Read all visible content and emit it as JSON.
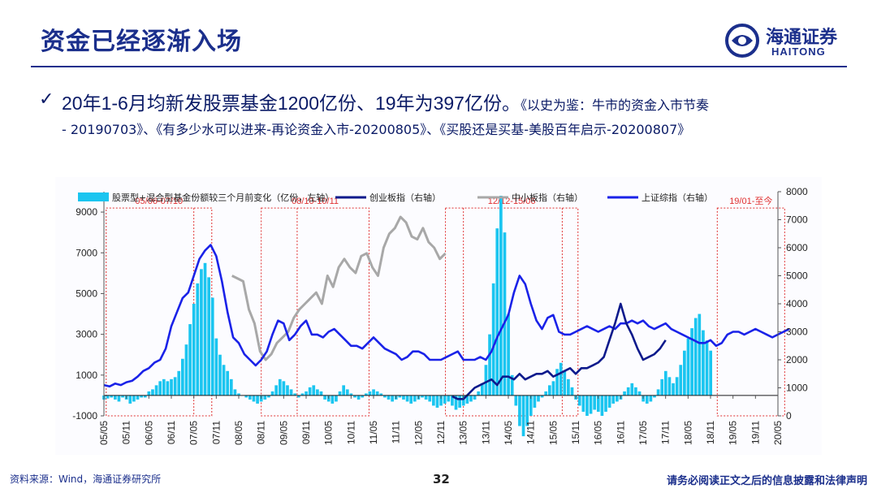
{
  "header": {
    "title": "资金已经逐渐入场",
    "logo_cn": "海通证券",
    "logo_en": "HAITONG"
  },
  "bullet": {
    "main": "20年1-6月均新发股票基金1200亿份、19年为397亿份。",
    "ref1": "《以史为鉴：牛市的资金入市节奏",
    "ref2": "- 20190703》、《有多少水可以进来-再论资金入市-20200805》、《买股还是买基-美股百年启示-20200807》"
  },
  "chart_data": {
    "type": "bar+line",
    "legend": [
      "股票型+混合型基金份额较三个月前变化（亿份，左轴）",
      "创业板指（右轴）",
      "中小板指（右轴）",
      "上证综指（右轴）"
    ],
    "colors": {
      "bar": "#1ac5f0",
      "cyb": "#0d1a8c",
      "zxb": "#a8a8a8",
      "sh": "#1a22e8",
      "rect": "#e03030"
    },
    "left_axis": {
      "min": -1000,
      "max": 10000,
      "ticks": [
        -1000,
        1000,
        3000,
        5000,
        7000,
        9000
      ]
    },
    "right_axis": {
      "min": 0,
      "max": 8000,
      "ticks": [
        0,
        1000,
        2000,
        3000,
        4000,
        5000,
        6000,
        7000,
        8000
      ]
    },
    "x_ticks": [
      "05/05",
      "05/11",
      "06/05",
      "06/11",
      "07/05",
      "07/11",
      "08/05",
      "08/11",
      "09/05",
      "09/11",
      "10/05",
      "10/11",
      "11/05",
      "11/11",
      "12/05",
      "12/11",
      "13/05",
      "13/11",
      "14/05",
      "14/11",
      "15/05",
      "15/11",
      "16/05",
      "16/11",
      "17/05",
      "17/11",
      "18/05",
      "18/11",
      "19/05",
      "19/11",
      "20/05"
    ],
    "annotations": [
      {
        "label": "05/06-07/10",
        "start": 0.1,
        "end": 4.8
      },
      {
        "label": "08/10-10/11",
        "start": 7.0,
        "end": 11.8
      },
      {
        "label": "12/12-15/06",
        "start": 15.2,
        "end": 21.1
      },
      {
        "label": "19/01-至今",
        "start": 27.3,
        "end": 30.3
      }
    ],
    "bars": {
      "start": 0.0,
      "step": 0.1667,
      "values": [
        -200,
        -150,
        -100,
        -200,
        -300,
        -100,
        -200,
        -400,
        -300,
        -200,
        -100,
        -100,
        200,
        300,
        500,
        700,
        800,
        700,
        800,
        900,
        1200,
        1800,
        2500,
        3500,
        4500,
        5500,
        6200,
        6500,
        5800,
        4800,
        2800,
        2000,
        1500,
        1200,
        800,
        300,
        100,
        0,
        -100,
        -200,
        -300,
        -400,
        -300,
        -200,
        -100,
        200,
        500,
        800,
        700,
        500,
        300,
        100,
        -100,
        100,
        200,
        400,
        500,
        300,
        200,
        -200,
        -300,
        -400,
        -300,
        200,
        500,
        300,
        100,
        -100,
        -200,
        -100,
        100,
        200,
        300,
        200,
        100,
        -100,
        -200,
        -300,
        -200,
        -100,
        -200,
        -300,
        -400,
        -300,
        -200,
        -100,
        -200,
        -300,
        -500,
        -600,
        -500,
        -400,
        -300,
        -500,
        -700,
        -600,
        -500,
        -400,
        -300,
        -200,
        200,
        600,
        1500,
        3000,
        5500,
        8200,
        9800,
        8000,
        4000,
        1000,
        -500,
        -1500,
        -2000,
        -1500,
        -1000,
        -600,
        -300,
        -100,
        200,
        500,
        700,
        1300,
        1600,
        1200,
        800,
        400,
        -200,
        -500,
        -800,
        -1000,
        -900,
        -700,
        -800,
        -1000,
        -800,
        -600,
        -400,
        -300,
        -200,
        200,
        400,
        600,
        400,
        200,
        -300,
        -400,
        -300,
        -100,
        300,
        800,
        1200,
        900,
        600,
        900,
        1500,
        2200,
        2800,
        3300,
        3800,
        4000,
        3200,
        2700,
        2200
      ]
    },
    "sh_index": {
      "start": 0.0,
      "step": 0.25,
      "values": [
        1100,
        1050,
        1150,
        1100,
        1200,
        1250,
        1400,
        1600,
        1700,
        1900,
        2000,
        2400,
        3200,
        3700,
        4200,
        4400,
        5000,
        5600,
        5900,
        6100,
        5700,
        4800,
        3700,
        2800,
        2600,
        2200,
        2000,
        1800,
        2000,
        2300,
        2900,
        3400,
        3300,
        2700,
        2900,
        3200,
        3400,
        2900,
        2900,
        2800,
        3000,
        3100,
        2900,
        2700,
        2500,
        2500,
        2400,
        2600,
        2800,
        2600,
        2400,
        2300,
        2200,
        2000,
        2100,
        2300,
        2300,
        2200,
        2000,
        2000,
        2000,
        2100,
        2200,
        2300,
        2000,
        2000,
        2000,
        2100,
        2000,
        2300,
        2800,
        3200,
        3600,
        4400,
        5000,
        4700,
        4000,
        3400,
        3100,
        3500,
        3600,
        3000,
        2900,
        2900,
        3000,
        3100,
        3200,
        3100,
        3000,
        3100,
        3200,
        3100,
        3300,
        3300,
        3400,
        3300,
        3400,
        3200,
        3100,
        3200,
        3300,
        3100,
        3000,
        2900,
        2800,
        2700,
        2600,
        2600,
        2700,
        2500,
        2600,
        2900,
        3000,
        3000,
        2900,
        3000,
        3100,
        3000,
        2900,
        2800,
        2900,
        3000,
        3100
      ]
    },
    "cyb_index": {
      "start": 15.5,
      "step": 0.25,
      "values": [
        700,
        600,
        600,
        800,
        1000,
        1100,
        1200,
        1300,
        1100,
        1400,
        1400,
        1300,
        1500,
        1300,
        1400,
        1500,
        1500,
        1600,
        1400,
        1500,
        1600,
        1700,
        1500,
        1700,
        1700,
        1800,
        1900,
        2100,
        2700,
        3300,
        4000,
        3300,
        2900,
        2400,
        2000,
        2100,
        2200,
        2400,
        2700
      ]
    },
    "zxb_index": {
      "start": 5.7,
      "step": 0.25,
      "values": [
        5000,
        4900,
        4800,
        3800,
        3300,
        2300,
        2000,
        2200,
        2600,
        2800,
        3000,
        3500,
        3800,
        4000,
        4200,
        4400,
        4000,
        5000,
        4600,
        5300,
        5600,
        5300,
        5100,
        5700,
        5800,
        5300,
        5000,
        6000,
        6500,
        6700,
        7100,
        6900,
        6400,
        6300,
        6700,
        6200,
        6000,
        5600,
        5800
      ]
    }
  },
  "footer": {
    "source": "资料来源：Wind，海通证券研究所",
    "page": "32",
    "disclaimer": "请务必阅读正文之后的信息披露和法律声明"
  }
}
